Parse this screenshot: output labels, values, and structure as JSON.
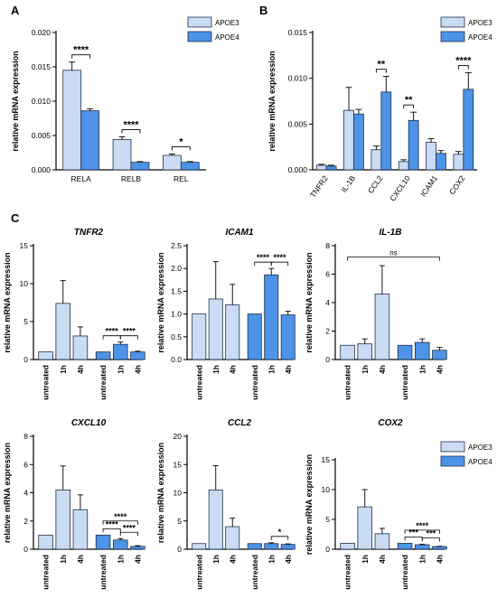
{
  "legend": {
    "apoe3": "APOE3",
    "apoe4": "APOE4"
  },
  "colors": {
    "apoe3": "#c9dcf3",
    "apoe4": "#4d93e8",
    "stroke": "#1f2f47"
  },
  "chart_data": [
    {
      "panel": "A",
      "type": "bar",
      "ylabel": "relative mRNA expression",
      "ylim": [
        0,
        0.02
      ],
      "yticks": [
        "0.000",
        "0.005",
        "0.010",
        "0.015",
        "0.020"
      ],
      "ytick_values": [
        0,
        0.005,
        0.01,
        0.015,
        0.02
      ],
      "categories": [
        "RELA",
        "RELB",
        "REL"
      ],
      "series": [
        {
          "name": "APOE3",
          "values": [
            0.0145,
            0.0044,
            0.0021
          ],
          "errors": [
            0.0012,
            0.0004,
            0.0002
          ]
        },
        {
          "name": "APOE4",
          "values": [
            0.0086,
            0.0011,
            0.0011
          ],
          "errors": [
            0.0003,
            0.0001,
            0.0001
          ]
        }
      ],
      "significance": [
        {
          "category": 0,
          "label": "****"
        },
        {
          "category": 1,
          "label": "****"
        },
        {
          "category": 2,
          "label": "*"
        }
      ]
    },
    {
      "panel": "B",
      "type": "bar",
      "ylabel": "relative mRNA expression",
      "ylim": [
        0,
        0.015
      ],
      "yticks": [
        "0.000",
        "0.005",
        "0.010",
        "0.015"
      ],
      "ytick_values": [
        0,
        0.005,
        0.01,
        0.015
      ],
      "categories": [
        "TNFR2",
        "IL-1B",
        "CCL2",
        "CXCL10",
        "ICAM1",
        "COX2"
      ],
      "series": [
        {
          "name": "APOE3",
          "values": [
            0.0005,
            0.0065,
            0.0022,
            0.0009,
            0.003,
            0.0017
          ],
          "errors": [
            0.0001,
            0.0025,
            0.0004,
            0.0002,
            0.0004,
            0.0003
          ]
        },
        {
          "name": "APOE4",
          "values": [
            0.0004,
            0.0061,
            0.0085,
            0.0054,
            0.0018,
            0.0088
          ],
          "errors": [
            0.0001,
            0.0005,
            0.0017,
            0.0009,
            0.0003,
            0.0018
          ]
        }
      ],
      "significance": [
        {
          "category": 2,
          "label": "**"
        },
        {
          "category": 3,
          "label": "**"
        },
        {
          "category": 5,
          "label": "****"
        }
      ]
    },
    {
      "panel": "C",
      "type": "bar",
      "title": "TNFR2",
      "ylabel": "relative mRNA expression",
      "ylim": [
        0,
        15
      ],
      "yticks": [
        "0",
        "5",
        "10",
        "15"
      ],
      "ytick_values": [
        0,
        5,
        10,
        15
      ],
      "categories": [
        "untreated",
        "1h",
        "4h",
        "untreated",
        "1h",
        "4h"
      ],
      "groups": [
        "APOE3",
        "APOE3",
        "APOE3",
        "APOE4",
        "APOE4",
        "APOE4"
      ],
      "values": [
        1.0,
        7.4,
        3.1,
        1.0,
        2.0,
        1.0
      ],
      "errors": [
        0,
        3.0,
        1.2,
        0,
        0.3,
        0.1
      ],
      "brackets": [
        {
          "from": 3,
          "to": 4,
          "label": "****"
        },
        {
          "from": 4,
          "to": 5,
          "label": "****"
        }
      ]
    },
    {
      "panel": "",
      "type": "bar",
      "title": "ICAM1",
      "ylabel": "relative mRNA expression",
      "ylim": [
        0,
        2.5
      ],
      "yticks": [
        "0.0",
        "0.5",
        "1.0",
        "1.5",
        "2.0",
        "2.5"
      ],
      "ytick_values": [
        0,
        0.5,
        1.0,
        1.5,
        2.0,
        2.5
      ],
      "categories": [
        "untreated",
        "1h",
        "4h",
        "untreated",
        "1h",
        "4h"
      ],
      "groups": [
        "APOE3",
        "APOE3",
        "APOE3",
        "APOE4",
        "APOE4",
        "APOE4"
      ],
      "values": [
        1.0,
        1.33,
        1.2,
        1.0,
        1.86,
        0.98
      ],
      "errors": [
        0,
        0.82,
        0.45,
        0,
        0.14,
        0.08
      ],
      "brackets": [
        {
          "from": 3,
          "to": 4,
          "label": "****"
        },
        {
          "from": 4,
          "to": 5,
          "label": "****"
        }
      ]
    },
    {
      "panel": "",
      "type": "bar",
      "title": "IL-1B",
      "ylabel": "relative mRNA expression",
      "ylim": [
        0,
        8
      ],
      "yticks": [
        "0",
        "2",
        "4",
        "6",
        "8"
      ],
      "ytick_values": [
        0,
        2,
        4,
        6,
        8
      ],
      "categories": [
        "untreated",
        "1h",
        "4h",
        "untreated",
        "1h",
        "4h"
      ],
      "groups": [
        "APOE3",
        "APOE3",
        "APOE3",
        "APOE4",
        "APOE4",
        "APOE4"
      ],
      "values": [
        1.0,
        1.1,
        4.6,
        1.0,
        1.2,
        0.65
      ],
      "errors": [
        0,
        0.35,
        2.0,
        0,
        0.25,
        0.2
      ],
      "brackets": [
        {
          "from": 0,
          "to": 5,
          "label": "ns",
          "y": 7.2
        }
      ]
    },
    {
      "panel": "",
      "type": "bar",
      "title": "CXCL10",
      "ylabel": "relative mRNA expression",
      "ylim": [
        0,
        8
      ],
      "yticks": [
        "0",
        "2",
        "4",
        "6",
        "8"
      ],
      "ytick_values": [
        0,
        2,
        4,
        6,
        8
      ],
      "categories": [
        "untreated",
        "1h",
        "4h",
        "untreated",
        "1h",
        "4h"
      ],
      "groups": [
        "APOE3",
        "APOE3",
        "APOE3",
        "APOE4",
        "APOE4",
        "APOE4"
      ],
      "values": [
        1.0,
        4.2,
        2.8,
        1.0,
        0.65,
        0.2
      ],
      "errors": [
        0,
        1.7,
        1.05,
        0,
        0.1,
        0.05
      ],
      "brackets": [
        {
          "from": 3,
          "to": 4,
          "label": "****"
        },
        {
          "from": 4,
          "to": 5,
          "label": "****"
        },
        {
          "from": 3,
          "to": 5,
          "label": "****",
          "y": 2.0
        }
      ]
    },
    {
      "panel": "",
      "type": "bar",
      "title": "CCL2",
      "ylabel": "relative mRNA expression",
      "ylim": [
        0,
        20
      ],
      "yticks": [
        "0",
        "5",
        "10",
        "15",
        "20"
      ],
      "ytick_values": [
        0,
        5,
        10,
        15,
        20
      ],
      "categories": [
        "untreated",
        "1h",
        "4h",
        "untreated",
        "1h",
        "4h"
      ],
      "groups": [
        "APOE3",
        "APOE3",
        "APOE3",
        "APOE4",
        "APOE4",
        "APOE4"
      ],
      "values": [
        1.0,
        10.5,
        4.0,
        1.0,
        1.0,
        0.85
      ],
      "errors": [
        0,
        4.3,
        1.5,
        0,
        0.15,
        0.1
      ],
      "brackets": [
        {
          "from": 4,
          "to": 5,
          "label": "*"
        }
      ]
    },
    {
      "panel": "",
      "type": "bar",
      "title": "COX2",
      "ylabel": "relative mRNA expression",
      "ylim": [
        0,
        15
      ],
      "yticks": [
        "0",
        "5",
        "10",
        "15"
      ],
      "ytick_values": [
        0,
        5,
        10,
        15
      ],
      "categories": [
        "untreated",
        "1h",
        "4h",
        "untreated",
        "1h",
        "4h"
      ],
      "groups": [
        "APOE3",
        "APOE3",
        "APOE3",
        "APOE4",
        "APOE4",
        "APOE4"
      ],
      "values": [
        1.0,
        7.1,
        2.6,
        1.0,
        0.75,
        0.45
      ],
      "errors": [
        0,
        2.9,
        0.9,
        0,
        0.1,
        0.05
      ],
      "brackets": [
        {
          "from": 3,
          "to": 4,
          "label": "***"
        },
        {
          "from": 4,
          "to": 5,
          "label": "***"
        },
        {
          "from": 3,
          "to": 5,
          "label": "****",
          "y": 3.2
        }
      ]
    }
  ]
}
